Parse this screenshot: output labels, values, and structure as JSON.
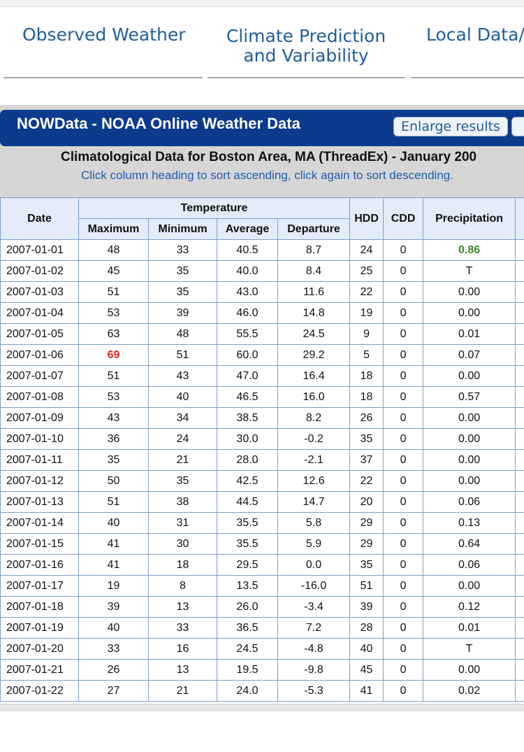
{
  "nav": {
    "tabs": [
      "Observed Weather",
      "Climate Prediction and Variability",
      "Local Data/"
    ]
  },
  "header": {
    "title": "NOWData - NOAA Online Weather Data",
    "button": "Enlarge results"
  },
  "subtitle": "Climatological Data for Boston Area, MA (ThreadEx) - January 200",
  "instructions": "Click column heading to sort ascending, click again to sort descending.",
  "table": {
    "group_header": "Temperature",
    "columns": [
      "Date",
      "Maximum",
      "Minimum",
      "Average",
      "Departure",
      "HDD",
      "CDD",
      "Precipitation"
    ],
    "rows": [
      [
        "2007-01-01",
        "48",
        "33",
        "40.5",
        "8.7",
        "24",
        "0",
        "0.86"
      ],
      [
        "2007-01-02",
        "45",
        "35",
        "40.0",
        "8.4",
        "25",
        "0",
        "T"
      ],
      [
        "2007-01-03",
        "51",
        "35",
        "43.0",
        "11.6",
        "22",
        "0",
        "0.00"
      ],
      [
        "2007-01-04",
        "53",
        "39",
        "46.0",
        "14.8",
        "19",
        "0",
        "0.00"
      ],
      [
        "2007-01-05",
        "63",
        "48",
        "55.5",
        "24.5",
        "9",
        "0",
        "0.01"
      ],
      [
        "2007-01-06",
        "69",
        "51",
        "60.0",
        "29.2",
        "5",
        "0",
        "0.07"
      ],
      [
        "2007-01-07",
        "51",
        "43",
        "47.0",
        "16.4",
        "18",
        "0",
        "0.00"
      ],
      [
        "2007-01-08",
        "53",
        "40",
        "46.5",
        "16.0",
        "18",
        "0",
        "0.57"
      ],
      [
        "2007-01-09",
        "43",
        "34",
        "38.5",
        "8.2",
        "26",
        "0",
        "0.00"
      ],
      [
        "2007-01-10",
        "36",
        "24",
        "30.0",
        "-0.2",
        "35",
        "0",
        "0.00"
      ],
      [
        "2007-01-11",
        "35",
        "21",
        "28.0",
        "-2.1",
        "37",
        "0",
        "0.00"
      ],
      [
        "2007-01-12",
        "50",
        "35",
        "42.5",
        "12.6",
        "22",
        "0",
        "0.00"
      ],
      [
        "2007-01-13",
        "51",
        "38",
        "44.5",
        "14.7",
        "20",
        "0",
        "0.06"
      ],
      [
        "2007-01-14",
        "40",
        "31",
        "35.5",
        "5.8",
        "29",
        "0",
        "0.13"
      ],
      [
        "2007-01-15",
        "41",
        "30",
        "35.5",
        "5.9",
        "29",
        "0",
        "0.64"
      ],
      [
        "2007-01-16",
        "41",
        "18",
        "29.5",
        "0.0",
        "35",
        "0",
        "0.06"
      ],
      [
        "2007-01-17",
        "19",
        "8",
        "13.5",
        "-16.0",
        "51",
        "0",
        "0.00"
      ],
      [
        "2007-01-18",
        "39",
        "13",
        "26.0",
        "-3.4",
        "39",
        "0",
        "0.12"
      ],
      [
        "2007-01-19",
        "40",
        "33",
        "36.5",
        "7.2",
        "28",
        "0",
        "0.01"
      ],
      [
        "2007-01-20",
        "33",
        "16",
        "24.5",
        "-4.8",
        "40",
        "0",
        "T"
      ],
      [
        "2007-01-21",
        "26",
        "13",
        "19.5",
        "-9.8",
        "45",
        "0",
        "0.00"
      ],
      [
        "2007-01-22",
        "27",
        "21",
        "24.0",
        "-5.3",
        "41",
        "0",
        "0.02"
      ]
    ],
    "highlights": [
      {
        "row": 0,
        "col": 7,
        "color": "#3a8a2a"
      },
      {
        "row": 5,
        "col": 1,
        "color": "#e02020"
      }
    ]
  }
}
